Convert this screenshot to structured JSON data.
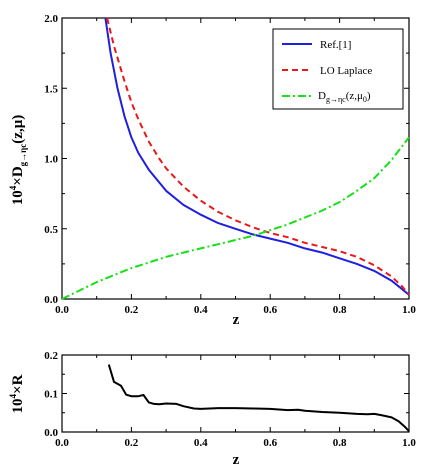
{
  "colors": {
    "axis": "#000000",
    "ref": "#1f1fe0",
    "lo": "#e8191a",
    "frag": "#18e018",
    "ratio": "#000000"
  },
  "chart_data": [
    {
      "type": "line",
      "xlabel": "z",
      "ylabel": {
        "main": "10",
        "sup": "4",
        "mid": "×D",
        "sub": "g→ηc",
        "tail": "(z,μ)"
      },
      "xlim": [
        0.0,
        1.0
      ],
      "ylim": [
        0.0,
        2.0
      ],
      "xticks": [
        "0.0",
        "0.2",
        "0.4",
        "0.6",
        "0.8",
        "1.0"
      ],
      "yticks": [
        "0.0",
        "0.5",
        "1.0",
        "1.5",
        "2.0"
      ],
      "legend_position": "top-right",
      "series": [
        {
          "name": "Ref.[1]",
          "style": "solid",
          "x": [
            0.125,
            0.14,
            0.16,
            0.18,
            0.2,
            0.22,
            0.25,
            0.28,
            0.3,
            0.35,
            0.4,
            0.45,
            0.5,
            0.55,
            0.6,
            0.65,
            0.7,
            0.75,
            0.8,
            0.85,
            0.9,
            0.95,
            0.98,
            1.0
          ],
          "y": [
            2.0,
            1.75,
            1.5,
            1.3,
            1.15,
            1.04,
            0.92,
            0.83,
            0.77,
            0.67,
            0.6,
            0.54,
            0.5,
            0.46,
            0.43,
            0.4,
            0.36,
            0.33,
            0.29,
            0.25,
            0.2,
            0.13,
            0.07,
            0.03
          ]
        },
        {
          "name": "LO Laplace",
          "style": "dashed",
          "x": [
            0.13,
            0.15,
            0.18,
            0.2,
            0.22,
            0.25,
            0.28,
            0.3,
            0.35,
            0.4,
            0.45,
            0.5,
            0.55,
            0.6,
            0.65,
            0.7,
            0.75,
            0.8,
            0.85,
            0.9,
            0.95,
            0.98,
            1.0
          ],
          "y": [
            2.0,
            1.8,
            1.55,
            1.4,
            1.28,
            1.12,
            1.0,
            0.93,
            0.8,
            0.7,
            0.62,
            0.56,
            0.51,
            0.47,
            0.44,
            0.4,
            0.37,
            0.34,
            0.3,
            0.24,
            0.16,
            0.09,
            0.03
          ]
        },
        {
          "name": "D",
          "name_sub": "g→ηc",
          "name_tail_open": "(z,μ",
          "name_tail_sub": "0",
          "name_tail_close": ")",
          "style": "dashdot",
          "x": [
            0.0,
            0.05,
            0.1,
            0.15,
            0.2,
            0.25,
            0.3,
            0.35,
            0.4,
            0.45,
            0.5,
            0.55,
            0.6,
            0.65,
            0.7,
            0.75,
            0.8,
            0.85,
            0.9,
            0.95,
            1.0
          ],
          "y": [
            0.0,
            0.06,
            0.12,
            0.17,
            0.22,
            0.26,
            0.3,
            0.33,
            0.36,
            0.39,
            0.42,
            0.45,
            0.49,
            0.53,
            0.58,
            0.63,
            0.69,
            0.77,
            0.86,
            0.99,
            1.15
          ]
        }
      ]
    },
    {
      "type": "line",
      "xlabel": "z",
      "ylabel": {
        "main": "10",
        "sup": "4",
        "mid": "×R"
      },
      "xlim": [
        0.0,
        1.0
      ],
      "ylim": [
        0.0,
        0.2
      ],
      "xticks": [
        "0.0",
        "0.2",
        "0.4",
        "0.6",
        "0.8",
        "1.0"
      ],
      "yticks": [
        "0.0",
        "0.1",
        "0.2"
      ],
      "series": [
        {
          "style": "solid",
          "x": [
            0.135,
            0.15,
            0.17,
            0.185,
            0.2,
            0.22,
            0.235,
            0.25,
            0.265,
            0.28,
            0.3,
            0.33,
            0.35,
            0.38,
            0.4,
            0.45,
            0.5,
            0.55,
            0.6,
            0.65,
            0.68,
            0.7,
            0.75,
            0.8,
            0.85,
            0.88,
            0.9,
            0.92,
            0.95,
            0.97,
            0.99,
            1.0
          ],
          "y": [
            0.175,
            0.13,
            0.12,
            0.097,
            0.093,
            0.093,
            0.096,
            0.077,
            0.073,
            0.072,
            0.074,
            0.073,
            0.067,
            0.061,
            0.06,
            0.062,
            0.062,
            0.061,
            0.06,
            0.057,
            0.058,
            0.055,
            0.052,
            0.05,
            0.047,
            0.046,
            0.047,
            0.044,
            0.038,
            0.028,
            0.012,
            0.002
          ]
        }
      ]
    }
  ]
}
